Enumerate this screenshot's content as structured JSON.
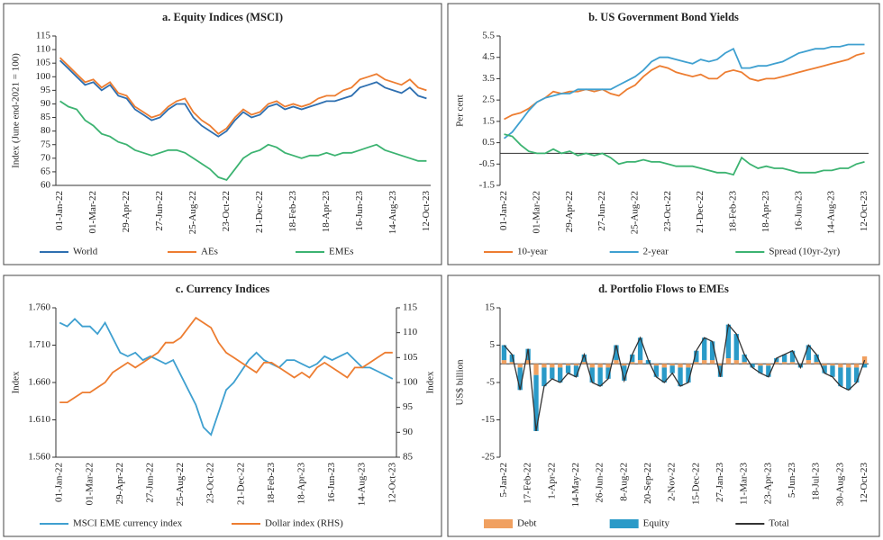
{
  "chart_data": [
    {
      "type": "line",
      "title": "a. Equity Indices (MSCI)",
      "ylabel": "Index (June end-2021 = 100)",
      "categories": [
        "01-Jan-22",
        null,
        null,
        null,
        "01-Mar-22",
        null,
        null,
        null,
        "29-Apr-22",
        null,
        null,
        null,
        "27-Jun-22",
        null,
        null,
        null,
        "25-Aug-22",
        null,
        null,
        null,
        "23-Oct-22",
        null,
        null,
        null,
        "21-Dec-22",
        null,
        null,
        null,
        "18-Feb-23",
        null,
        null,
        null,
        "18-Apr-23",
        null,
        null,
        null,
        "16-Jun-23",
        null,
        null,
        null,
        "14-Aug-23",
        null,
        null,
        null,
        "12-Oct-23"
      ],
      "ylim": [
        60,
        115
      ],
      "yticks": [
        60,
        65,
        70,
        75,
        80,
        85,
        90,
        95,
        100,
        105,
        110,
        115
      ],
      "series": [
        {
          "name": "World",
          "color": "#2e6fb0",
          "values": [
            106,
            103,
            100,
            97,
            98,
            95,
            97,
            93,
            92,
            88,
            86,
            84,
            85,
            88,
            90,
            90,
            85,
            82,
            80,
            78,
            80,
            84,
            87,
            85,
            86,
            89,
            90,
            88,
            89,
            88,
            89,
            90,
            91,
            91,
            92,
            93,
            96,
            97,
            98,
            96,
            95,
            94,
            96,
            93,
            92
          ]
        },
        {
          "name": "AEs",
          "color": "#ed7d31",
          "values": [
            107,
            104,
            101,
            98,
            99,
            96,
            98,
            94,
            93,
            89,
            87,
            85,
            86,
            89,
            91,
            92,
            87,
            84,
            82,
            79,
            81,
            85,
            88,
            86,
            87,
            90,
            91,
            89,
            90,
            89,
            90,
            92,
            93,
            93,
            95,
            96,
            99,
            100,
            101,
            99,
            98,
            97,
            99,
            96,
            95
          ]
        },
        {
          "name": "EMEs",
          "color": "#3cb371",
          "values": [
            91,
            89,
            88,
            84,
            82,
            79,
            78,
            76,
            75,
            73,
            72,
            71,
            72,
            73,
            73,
            72,
            70,
            68,
            66,
            63,
            62,
            66,
            70,
            72,
            73,
            75,
            74,
            72,
            71,
            70,
            71,
            71,
            72,
            71,
            72,
            72,
            73,
            74,
            75,
            73,
            72,
            71,
            70,
            69,
            69
          ]
        }
      ]
    },
    {
      "type": "line",
      "title": "b. US  Government Bond Yields",
      "ylabel": "Per cent",
      "categories": [
        "01-Jan-22",
        null,
        null,
        null,
        "01-Mar-22",
        null,
        null,
        null,
        "29-Apr-22",
        null,
        null,
        null,
        "27-Jun-22",
        null,
        null,
        null,
        "25-Aug-22",
        null,
        null,
        null,
        "23-Oct-22",
        null,
        null,
        null,
        "21-Dec-22",
        null,
        null,
        null,
        "18-Feb-23",
        null,
        null,
        null,
        "18-Apr-23",
        null,
        null,
        null,
        "16-Jun-23",
        null,
        null,
        null,
        "14-Aug-23",
        null,
        null,
        null,
        "12-Oct-23"
      ],
      "ylim": [
        -1.5,
        5.5
      ],
      "yticks": [
        -1.5,
        -0.5,
        0.5,
        1.5,
        2.5,
        3.5,
        4.5,
        5.5
      ],
      "series": [
        {
          "name": "10-year",
          "color": "#ed7d31",
          "values": [
            1.6,
            1.8,
            1.9,
            2.1,
            2.4,
            2.6,
            2.9,
            2.8,
            2.9,
            2.9,
            3.0,
            2.9,
            3.0,
            2.8,
            2.7,
            3.0,
            3.2,
            3.6,
            3.9,
            4.1,
            4.0,
            3.8,
            3.7,
            3.6,
            3.7,
            3.5,
            3.5,
            3.8,
            3.9,
            3.8,
            3.5,
            3.4,
            3.5,
            3.5,
            3.6,
            3.7,
            3.8,
            3.9,
            4.0,
            4.1,
            4.2,
            4.3,
            4.4,
            4.6,
            4.7
          ]
        },
        {
          "name": "2-year",
          "color": "#3fa0d0",
          "values": [
            0.7,
            1.0,
            1.5,
            2.0,
            2.4,
            2.6,
            2.7,
            2.8,
            2.8,
            3.0,
            3.0,
            3.0,
            3.0,
            3.0,
            3.2,
            3.4,
            3.6,
            3.9,
            4.3,
            4.5,
            4.5,
            4.4,
            4.3,
            4.2,
            4.4,
            4.3,
            4.4,
            4.7,
            4.9,
            4.0,
            4.0,
            4.1,
            4.1,
            4.2,
            4.3,
            4.5,
            4.7,
            4.8,
            4.9,
            4.9,
            5.0,
            5.0,
            5.1,
            5.1,
            5.1
          ]
        },
        {
          "name": "Spread (10yr-2yr)",
          "color": "#3cb371",
          "values": [
            0.9,
            0.8,
            0.4,
            0.1,
            0.0,
            0.0,
            0.2,
            0.0,
            0.1,
            -0.1,
            0.0,
            -0.1,
            0.0,
            -0.2,
            -0.5,
            -0.4,
            -0.4,
            -0.3,
            -0.4,
            -0.4,
            -0.5,
            -0.6,
            -0.6,
            -0.6,
            -0.7,
            -0.8,
            -0.9,
            -0.9,
            -1.0,
            -0.2,
            -0.5,
            -0.7,
            -0.6,
            -0.7,
            -0.7,
            -0.8,
            -0.9,
            -0.9,
            -0.9,
            -0.8,
            -0.8,
            -0.7,
            -0.7,
            -0.5,
            -0.4
          ]
        }
      ]
    },
    {
      "type": "line",
      "title": "c. Currency Indices",
      "ylabel": "Index",
      "y2label": "Index",
      "categories": [
        "01-Jan-22",
        null,
        null,
        null,
        "01-Mar-22",
        null,
        null,
        null,
        "29-Apr-22",
        null,
        null,
        null,
        "27-Jun-22",
        null,
        null,
        null,
        "25-Aug-22",
        null,
        null,
        null,
        "23-Oct-22",
        null,
        null,
        null,
        "21-Dec-22",
        null,
        null,
        null,
        "18-Feb-23",
        null,
        null,
        null,
        "18-Apr-23",
        null,
        null,
        null,
        "16-Jun-23",
        null,
        null,
        null,
        "14-Aug-23",
        null,
        null,
        null,
        "12-Oct-23"
      ],
      "ylim": [
        1.56,
        1.76
      ],
      "yticks": [
        {
          "value": 1.56,
          "label": "1.560"
        },
        {
          "value": 1.61,
          "label": "1.610"
        },
        {
          "value": 1.66,
          "label": "1.660"
        },
        {
          "value": 1.71,
          "label": "1.710"
        },
        {
          "value": 1.76,
          "label": "1.760"
        }
      ],
      "y2lim": [
        85,
        115
      ],
      "y2ticks": [
        85,
        90,
        95,
        100,
        105,
        110,
        115
      ],
      "series": [
        {
          "name": "MSCI EME currency index",
          "color": "#3fa0d0",
          "values": [
            1.74,
            1.735,
            1.745,
            1.735,
            1.735,
            1.725,
            1.74,
            1.72,
            1.7,
            1.695,
            1.7,
            1.69,
            1.695,
            1.69,
            1.685,
            1.69,
            1.67,
            1.65,
            1.63,
            1.6,
            1.59,
            1.62,
            1.65,
            1.66,
            1.675,
            1.69,
            1.7,
            1.69,
            1.685,
            1.68,
            1.69,
            1.69,
            1.685,
            1.68,
            1.685,
            1.695,
            1.69,
            1.695,
            1.7,
            1.69,
            1.68,
            1.68,
            1.675,
            1.67,
            1.665
          ]
        },
        {
          "name": "Dollar index (RHS)",
          "color": "#ed7d31",
          "axis": "y2",
          "values": [
            96,
            96,
            97,
            98,
            98,
            99,
            100,
            102,
            103,
            104,
            103,
            104,
            105,
            106,
            108,
            108,
            109,
            111,
            113,
            112,
            111,
            108,
            106,
            105,
            104,
            103,
            102,
            104,
            104,
            103,
            102,
            101,
            102,
            101,
            103,
            104,
            103,
            102,
            101,
            103,
            103,
            104,
            105,
            106,
            106
          ]
        }
      ]
    },
    {
      "type": "bar",
      "title": "d. Portfolio Flows to EMEs",
      "ylabel": "US$ billion",
      "stacked": true,
      "categories": [
        "5-Jan-22",
        null,
        null,
        "17-Feb-22",
        null,
        null,
        "1-Apr-22",
        null,
        null,
        "14-May-22",
        null,
        null,
        "26-Jun-22",
        null,
        null,
        "8-Aug-22",
        null,
        null,
        "20-Sep-22",
        null,
        null,
        "2-Nov-22",
        null,
        null,
        "15-Dec-22",
        null,
        null,
        "27-Jan-23",
        null,
        null,
        "11-Mar-23",
        null,
        null,
        "23-Apr-23",
        null,
        null,
        "5-Jun-23",
        null,
        null,
        "18-Jul-23",
        null,
        null,
        "30-Aug-23",
        null,
        null,
        "12-Oct-23"
      ],
      "ylim": [
        -25,
        15
      ],
      "yticks": [
        -25,
        -15,
        -5,
        5,
        15
      ],
      "series": [
        {
          "name": "Debt",
          "color": "#f0a060",
          "values": [
            1,
            0.5,
            -1,
            1,
            -3,
            -1,
            -1,
            -1,
            -0.5,
            -0.5,
            0.5,
            -1,
            -1,
            -1,
            1,
            -0.5,
            0.5,
            1,
            0,
            -0.5,
            -1,
            -0.5,
            -1,
            -1,
            0.5,
            1,
            1,
            -0.5,
            1.5,
            1,
            0.5,
            0,
            -0.5,
            -0.5,
            0.5,
            0.5,
            0.5,
            0,
            1,
            0.5,
            -0.5,
            -0.5,
            -1,
            -1,
            -1,
            2
          ]
        },
        {
          "name": "Equity",
          "color": "#2a9ac8",
          "values": [
            4,
            2,
            -6,
            3,
            -15,
            -5,
            -3,
            -4,
            -2,
            -3,
            2,
            -4,
            -5,
            -3,
            4,
            -4,
            2,
            6,
            1,
            -3,
            -4,
            -2,
            -5,
            -4,
            3,
            6,
            5,
            -3,
            9,
            7,
            2,
            -1,
            -2,
            -3,
            1,
            2,
            3,
            -1,
            4,
            2,
            -2,
            -3,
            -5,
            -6,
            -4,
            -1
          ]
        },
        {
          "name": "Total",
          "color": "#333333",
          "type": "line",
          "values": [
            5,
            2.5,
            -7,
            4,
            -18,
            -6,
            -4,
            -5,
            -2.5,
            -3.5,
            2.5,
            -5,
            -6,
            -4,
            5,
            -4.5,
            2.5,
            7,
            1,
            -3.5,
            -5,
            -2.5,
            -6,
            -5,
            3.5,
            7,
            6,
            -3.5,
            10.5,
            8,
            2.5,
            -1,
            -2.5,
            -3.5,
            1.5,
            2.5,
            3.5,
            -1,
            5,
            2.5,
            -2.5,
            -3.5,
            -6,
            -7,
            -5,
            1
          ]
        }
      ]
    }
  ]
}
